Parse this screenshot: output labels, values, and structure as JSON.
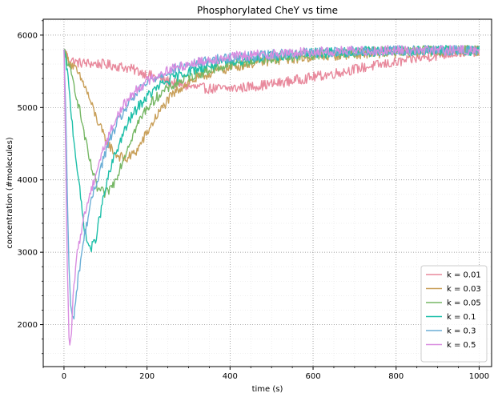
{
  "chart_data": {
    "type": "line",
    "title": "Phosphorylated CheY vs time",
    "xlabel": "time (s)",
    "ylabel": "concentration (#molecules)",
    "xlim": [
      -50,
      1030
    ],
    "ylim": [
      1420,
      6220
    ],
    "x_ticks": [
      0,
      200,
      400,
      600,
      800,
      1000
    ],
    "x_tick_labels": [
      "0",
      "200",
      "400",
      "600",
      "800",
      "1000"
    ],
    "y_ticks": [
      2000,
      3000,
      4000,
      5000,
      6000
    ],
    "y_tick_labels": [
      "2000",
      "3000",
      "4000",
      "5000",
      "6000"
    ],
    "grid": true,
    "minor_grid": true,
    "legend_position": "bottom-right",
    "noise_amplitude": 70,
    "series": [
      {
        "name": "k = 0.01",
        "color": "#e8899c",
        "x": [
          0,
          10,
          30,
          60,
          90,
          120,
          150,
          180,
          210,
          240,
          270,
          300,
          330,
          360,
          390,
          420,
          450,
          480,
          510,
          540,
          570,
          600,
          650,
          700,
          750,
          800,
          850,
          900,
          950,
          1000
        ],
        "y": [
          5800,
          5680,
          5620,
          5610,
          5600,
          5580,
          5550,
          5500,
          5440,
          5380,
          5330,
          5290,
          5270,
          5260,
          5260,
          5270,
          5290,
          5310,
          5330,
          5360,
          5390,
          5420,
          5470,
          5530,
          5580,
          5620,
          5680,
          5720,
          5760,
          5780
        ]
      },
      {
        "name": "k = 0.03",
        "color": "#c9a05a",
        "x": [
          0,
          10,
          25,
          50,
          75,
          100,
          125,
          150,
          175,
          200,
          225,
          250,
          275,
          300,
          350,
          400,
          450,
          500,
          600,
          700,
          800,
          900,
          1000
        ],
        "y": [
          5800,
          5650,
          5550,
          5300,
          4900,
          4550,
          4350,
          4280,
          4400,
          4650,
          4900,
          5100,
          5250,
          5350,
          5470,
          5550,
          5610,
          5650,
          5700,
          5740,
          5760,
          5780,
          5780
        ]
      },
      {
        "name": "k = 0.05",
        "color": "#76b765",
        "x": [
          0,
          10,
          25,
          40,
          60,
          80,
          100,
          120,
          140,
          160,
          180,
          200,
          230,
          260,
          300,
          350,
          400,
          450,
          500,
          600,
          700,
          800,
          900,
          1000
        ],
        "y": [
          5800,
          5600,
          5300,
          4900,
          4300,
          3880,
          3800,
          3950,
          4250,
          4550,
          4800,
          5000,
          5180,
          5300,
          5420,
          5520,
          5590,
          5640,
          5680,
          5730,
          5760,
          5780,
          5790,
          5790
        ]
      },
      {
        "name": "k = 0.1",
        "color": "#1ebfa9",
        "x": [
          0,
          8,
          16,
          25,
          35,
          45,
          55,
          65,
          75,
          85,
          95,
          105,
          120,
          140,
          160,
          180,
          200,
          230,
          260,
          300,
          350,
          400,
          500,
          600,
          700,
          800,
          900,
          1000
        ],
        "y": [
          5800,
          5500,
          5000,
          4500,
          4000,
          3500,
          3150,
          3050,
          3150,
          3450,
          3750,
          4000,
          4300,
          4600,
          4850,
          5020,
          5150,
          5300,
          5400,
          5500,
          5580,
          5640,
          5710,
          5750,
          5770,
          5780,
          5790,
          5790
        ]
      },
      {
        "name": "k = 0.3",
        "color": "#6baed6",
        "x": [
          0,
          4,
          8,
          12,
          16,
          20,
          25,
          30,
          40,
          50,
          60,
          70,
          80,
          90,
          110,
          130,
          150,
          180,
          210,
          250,
          300,
          350,
          400,
          500,
          600,
          700,
          800,
          900,
          1000
        ],
        "y": [
          5800,
          5000,
          3800,
          2800,
          2250,
          2080,
          2150,
          2450,
          2900,
          3250,
          3550,
          3800,
          4000,
          4200,
          4550,
          4800,
          5000,
          5230,
          5380,
          5500,
          5590,
          5650,
          5690,
          5730,
          5760,
          5780,
          5790,
          5790,
          5790
        ]
      },
      {
        "name": "k = 0.5",
        "color": "#d98de0",
        "x": [
          0,
          3,
          6,
          9,
          12,
          15,
          18,
          22,
          27,
          35,
          45,
          55,
          65,
          75,
          90,
          110,
          130,
          150,
          180,
          210,
          250,
          300,
          350,
          400,
          500,
          600,
          700,
          800,
          900,
          1000
        ],
        "y": [
          5800,
          4800,
          3600,
          2500,
          1850,
          1650,
          1900,
          2350,
          2750,
          3100,
          3400,
          3650,
          3850,
          4050,
          4350,
          4650,
          4900,
          5080,
          5280,
          5400,
          5520,
          5600,
          5660,
          5700,
          5740,
          5770,
          5780,
          5790,
          5790,
          5790
        ]
      }
    ]
  }
}
